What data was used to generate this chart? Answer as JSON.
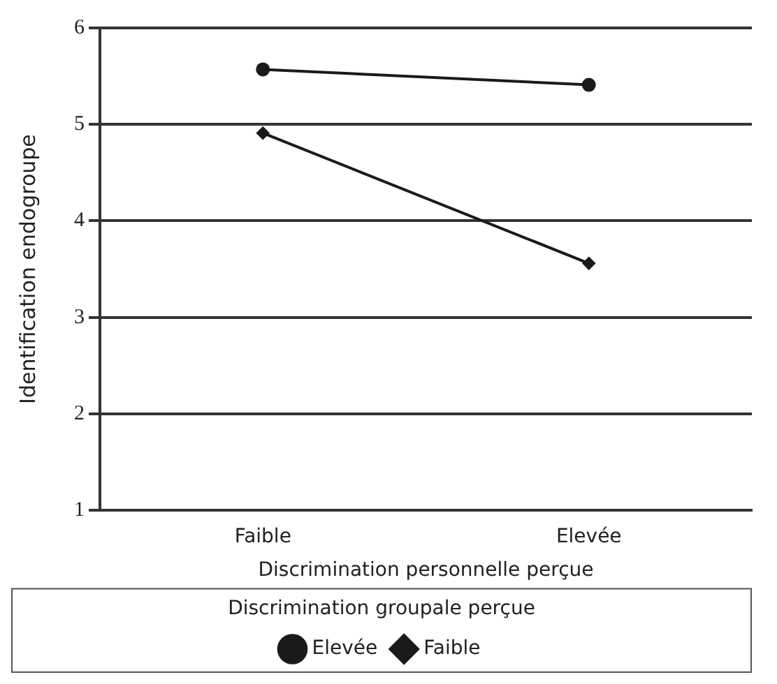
{
  "chart_data": {
    "type": "line",
    "xlabel": "Discrimination personnelle perçue",
    "ylabel": "Identification endogroupe",
    "legend_title": "Discrimination groupale perçue",
    "categories": [
      "Faible",
      "Elevée"
    ],
    "series": [
      {
        "name": "Elevée",
        "color": "#1a1a1a",
        "values": [
          5.57,
          5.41
        ],
        "marker": "circle"
      },
      {
        "name": "Faible",
        "color": "#1a1a1a",
        "values": [
          4.91,
          3.56
        ],
        "marker": "diamond"
      }
    ],
    "ylim": [
      1,
      6
    ],
    "yticks": [
      1,
      2,
      3,
      4,
      5,
      6
    ],
    "grid": "y",
    "legend": "bottom"
  }
}
